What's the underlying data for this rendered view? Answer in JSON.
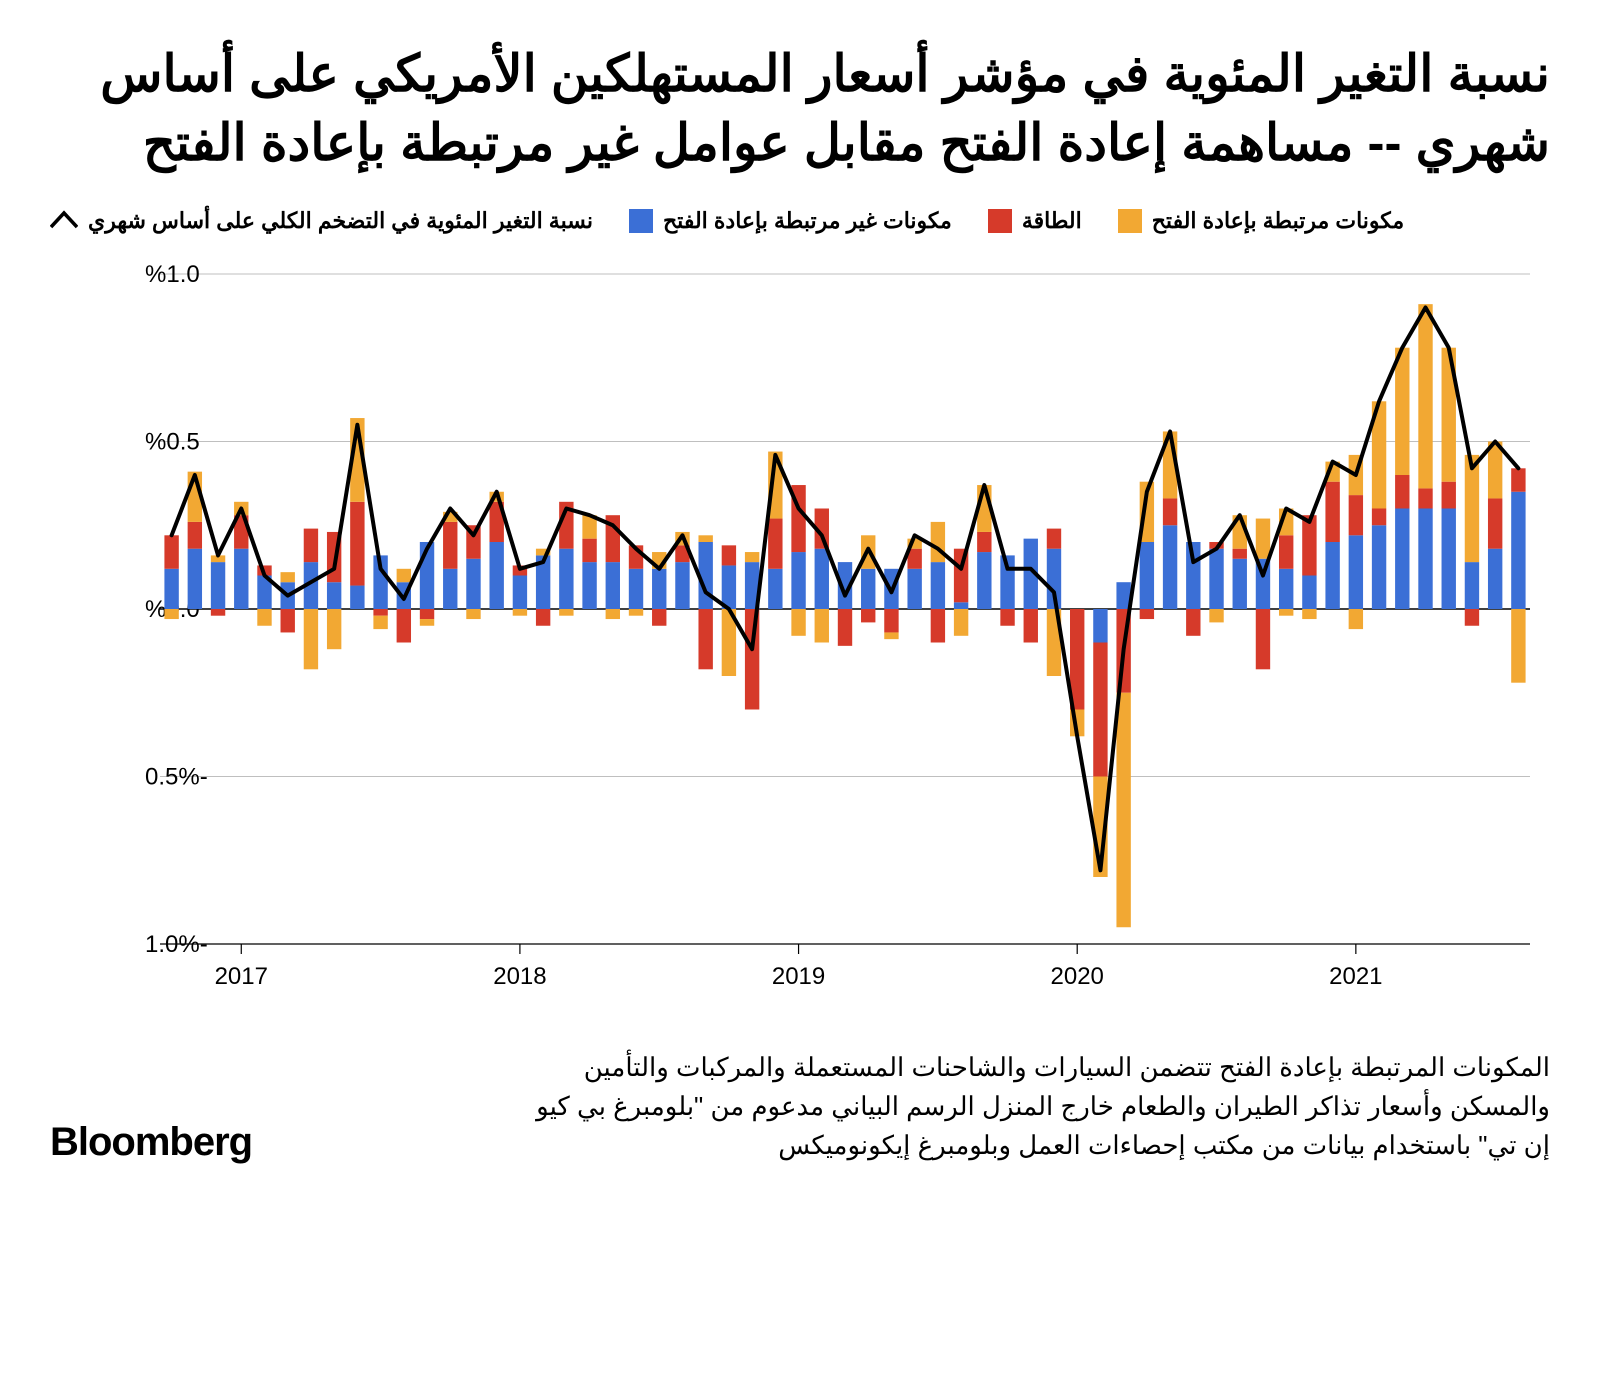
{
  "title": "نسبة التغير المئوية في مؤشر أسعار المستهلكين الأمريكي على أساس شهري -- مساهمة إعادة الفتح مقابل عوامل غير مرتبطة بإعادة الفتح",
  "legend": {
    "headline": "نسبة التغير المئوية في التضخم الكلي على أساس شهري",
    "non_reopen": "مكونات غير مرتبطة بإعادة الفتح",
    "energy": "الطاقة",
    "reopen": "مكونات مرتبطة بإعادة الفتح"
  },
  "colors": {
    "headline_line": "#000000",
    "non_reopen": "#3b6fd6",
    "energy": "#d63a2a",
    "reopen": "#f2a833",
    "axis": "#000000",
    "grid": "#bfbfbf",
    "baseline": "#000000",
    "background": "#ffffff"
  },
  "chart": {
    "type": "stacked-bar-with-line",
    "ylim": [
      -1.0,
      1.0
    ],
    "yticks": [
      -1.0,
      -0.5,
      0.0,
      0.5,
      1.0
    ],
    "ytick_labels": [
      "-1.0%",
      "-0.5%",
      "%0.0",
      "%0.5",
      "%1.0"
    ],
    "xtick_years": [
      "2017",
      "2018",
      "2019",
      "2020",
      "2021"
    ],
    "xtick_positions": [
      3,
      15,
      27,
      39,
      51
    ],
    "bar_width_ratio": 0.62,
    "line_width": 4,
    "axis_fontsize": 24,
    "data": {
      "periods": 59,
      "non_reopen": [
        0.12,
        0.18,
        0.14,
        0.18,
        0.1,
        0.08,
        0.14,
        0.08,
        0.07,
        0.16,
        0.08,
        0.2,
        0.12,
        0.15,
        0.2,
        0.1,
        0.16,
        0.18,
        0.14,
        0.14,
        0.12,
        0.12,
        0.14,
        0.2,
        0.13,
        0.14,
        0.12,
        0.17,
        0.18,
        0.14,
        0.12,
        0.12,
        0.12,
        0.14,
        0.02,
        0.17,
        0.16,
        0.21,
        0.18,
        0.0,
        -0.1,
        0.08,
        0.2,
        0.25,
        0.2,
        0.18,
        0.15,
        0.15,
        0.12,
        0.1,
        0.2,
        0.22,
        0.25,
        0.3,
        0.3,
        0.3,
        0.14,
        0.18,
        0.35
      ],
      "energy_pos": [
        0.1,
        0.08,
        0.0,
        0.1,
        0.03,
        0.0,
        0.1,
        0.15,
        0.25,
        0.0,
        0.0,
        0.0,
        0.14,
        0.1,
        0.12,
        0.03,
        0.0,
        0.14,
        0.07,
        0.14,
        0.07,
        0.0,
        0.05,
        0.0,
        0.06,
        0.0,
        0.15,
        0.2,
        0.12,
        0.0,
        0.0,
        0.0,
        0.06,
        0.0,
        0.16,
        0.06,
        0.0,
        0.0,
        0.06,
        0.0,
        0.0,
        0.0,
        0.0,
        0.08,
        0.0,
        0.02,
        0.03,
        0.0,
        0.1,
        0.18,
        0.18,
        0.12,
        0.05,
        0.1,
        0.06,
        0.08,
        0.0,
        0.15,
        0.07
      ],
      "energy_neg": [
        0.0,
        0.0,
        -0.02,
        0.0,
        0.0,
        -0.07,
        0.0,
        0.0,
        0.0,
        -0.02,
        -0.1,
        -0.03,
        0.0,
        0.0,
        0.0,
        0.0,
        -0.05,
        0.0,
        0.0,
        0.0,
        0.0,
        -0.05,
        0.0,
        -0.18,
        0.0,
        -0.3,
        0.0,
        0.0,
        0.0,
        -0.11,
        -0.04,
        -0.07,
        0.0,
        -0.1,
        0.0,
        0.0,
        -0.05,
        -0.1,
        0.0,
        -0.3,
        -0.4,
        -0.25,
        -0.03,
        0.0,
        -0.08,
        0.0,
        0.0,
        -0.18,
        0.0,
        0.0,
        0.0,
        0.0,
        0.0,
        0.0,
        0.0,
        0.0,
        -0.05,
        0.0,
        0.0
      ],
      "reopen_pos": [
        0.0,
        0.15,
        0.02,
        0.04,
        0.0,
        0.03,
        0.0,
        0.0,
        0.25,
        0.0,
        0.04,
        0.0,
        0.03,
        0.0,
        0.03,
        0.0,
        0.02,
        0.0,
        0.07,
        0.0,
        0.0,
        0.05,
        0.04,
        0.02,
        0.0,
        0.03,
        0.2,
        0.0,
        0.0,
        0.0,
        0.1,
        0.0,
        0.03,
        0.12,
        0.0,
        0.14,
        0.0,
        0.0,
        0.0,
        0.0,
        0.0,
        0.0,
        0.18,
        0.2,
        0.0,
        0.0,
        0.1,
        0.12,
        0.08,
        0.0,
        0.06,
        0.12,
        0.32,
        0.38,
        0.55,
        0.4,
        0.32,
        0.17,
        0.0
      ],
      "reopen_neg": [
        -0.03,
        0.0,
        0.0,
        0.0,
        -0.05,
        0.0,
        -0.18,
        -0.12,
        0.0,
        -0.04,
        0.0,
        -0.02,
        0.0,
        -0.03,
        0.0,
        -0.02,
        0.0,
        -0.02,
        0.0,
        -0.03,
        -0.02,
        0.0,
        0.0,
        0.0,
        -0.2,
        0.0,
        0.0,
        -0.08,
        -0.1,
        0.0,
        0.0,
        -0.02,
        0.0,
        0.0,
        -0.08,
        0.0,
        0.0,
        0.0,
        -0.2,
        -0.08,
        -0.3,
        -0.7,
        0.0,
        0.0,
        0.0,
        -0.04,
        0.0,
        0.0,
        -0.02,
        -0.03,
        0.0,
        -0.06,
        0.0,
        0.0,
        0.0,
        0.0,
        0.0,
        0.0,
        -0.22
      ],
      "headline": [
        0.22,
        0.4,
        0.16,
        0.3,
        0.1,
        0.04,
        0.08,
        0.12,
        0.55,
        0.12,
        0.03,
        0.18,
        0.3,
        0.22,
        0.35,
        0.12,
        0.14,
        0.3,
        0.28,
        0.25,
        0.18,
        0.12,
        0.22,
        0.05,
        0.0,
        -0.12,
        0.46,
        0.3,
        0.22,
        0.04,
        0.18,
        0.05,
        0.22,
        0.18,
        0.12,
        0.37,
        0.12,
        0.12,
        0.05,
        -0.38,
        -0.78,
        -0.12,
        0.35,
        0.53,
        0.14,
        0.18,
        0.28,
        0.1,
        0.3,
        0.26,
        0.44,
        0.4,
        0.62,
        0.78,
        0.9,
        0.78,
        0.42,
        0.5,
        0.42
      ]
    }
  },
  "footnote": "المكونات المرتبطة بإعادة الفتح تتضمن السيارات والشاحنات المستعملة والمركبات والتأمين والمسكن وأسعار تذاكر الطيران والطعام خارج المنزل الرسم البياني مدعوم من \"بلومبرغ بي كيو إن تي\" باستخدام بيانات من مكتب إحصاءات العمل وبلومبرغ إيكونوميكس",
  "brand": "Bloomberg"
}
